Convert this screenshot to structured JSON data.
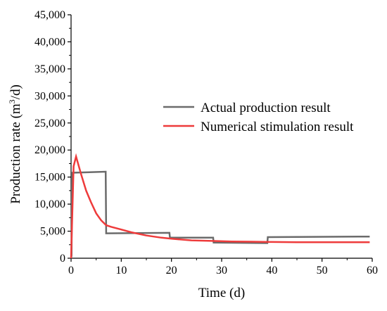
{
  "chart_data": {
    "type": "line",
    "xlabel": "Time (d)",
    "ylabel": {
      "prefix": "Production rate (m",
      "sup": "3",
      "suffix": "/d)"
    },
    "xlim": [
      0,
      60
    ],
    "ylim": [
      0,
      45000
    ],
    "x_ticks": [
      "0",
      "10",
      "20",
      "30",
      "40",
      "50",
      "60"
    ],
    "y_ticks": [
      "0",
      "5,000",
      "10,000",
      "15,000",
      "20,000",
      "25,000",
      "30,000",
      "35,000",
      "40,000",
      "45,000"
    ],
    "x_tick_values": [
      0,
      10,
      20,
      30,
      40,
      50,
      60
    ],
    "y_tick_values": [
      0,
      5000,
      10000,
      15000,
      20000,
      25000,
      30000,
      35000,
      40000,
      45000
    ],
    "grid": false,
    "legend_position": "right",
    "series": [
      {
        "name": "Actual production result",
        "color": "#6b6b6b",
        "x": [
          0,
          0.1,
          0.2,
          6.9,
          7.0,
          19.6,
          19.7,
          28.3,
          28.4,
          39.1,
          39.2,
          59.5
        ],
        "y": [
          0,
          500,
          15800,
          16000,
          4600,
          4700,
          3800,
          3800,
          2900,
          2800,
          3900,
          4000
        ]
      },
      {
        "name": "Numerical stimulation result",
        "color": "#ee3b3b",
        "x": [
          0,
          0.5,
          1,
          2,
          3,
          4,
          5,
          6,
          7,
          8,
          10,
          12,
          15,
          18,
          20,
          24,
          28,
          32,
          36,
          40,
          45,
          50,
          55,
          59.5
        ],
        "y": [
          0,
          17000,
          18800,
          15500,
          12500,
          10300,
          8300,
          7000,
          6100,
          5800,
          5300,
          4800,
          4200,
          3800,
          3600,
          3300,
          3200,
          3100,
          3050,
          3000,
          2950,
          2950,
          2950,
          2950
        ]
      }
    ]
  }
}
